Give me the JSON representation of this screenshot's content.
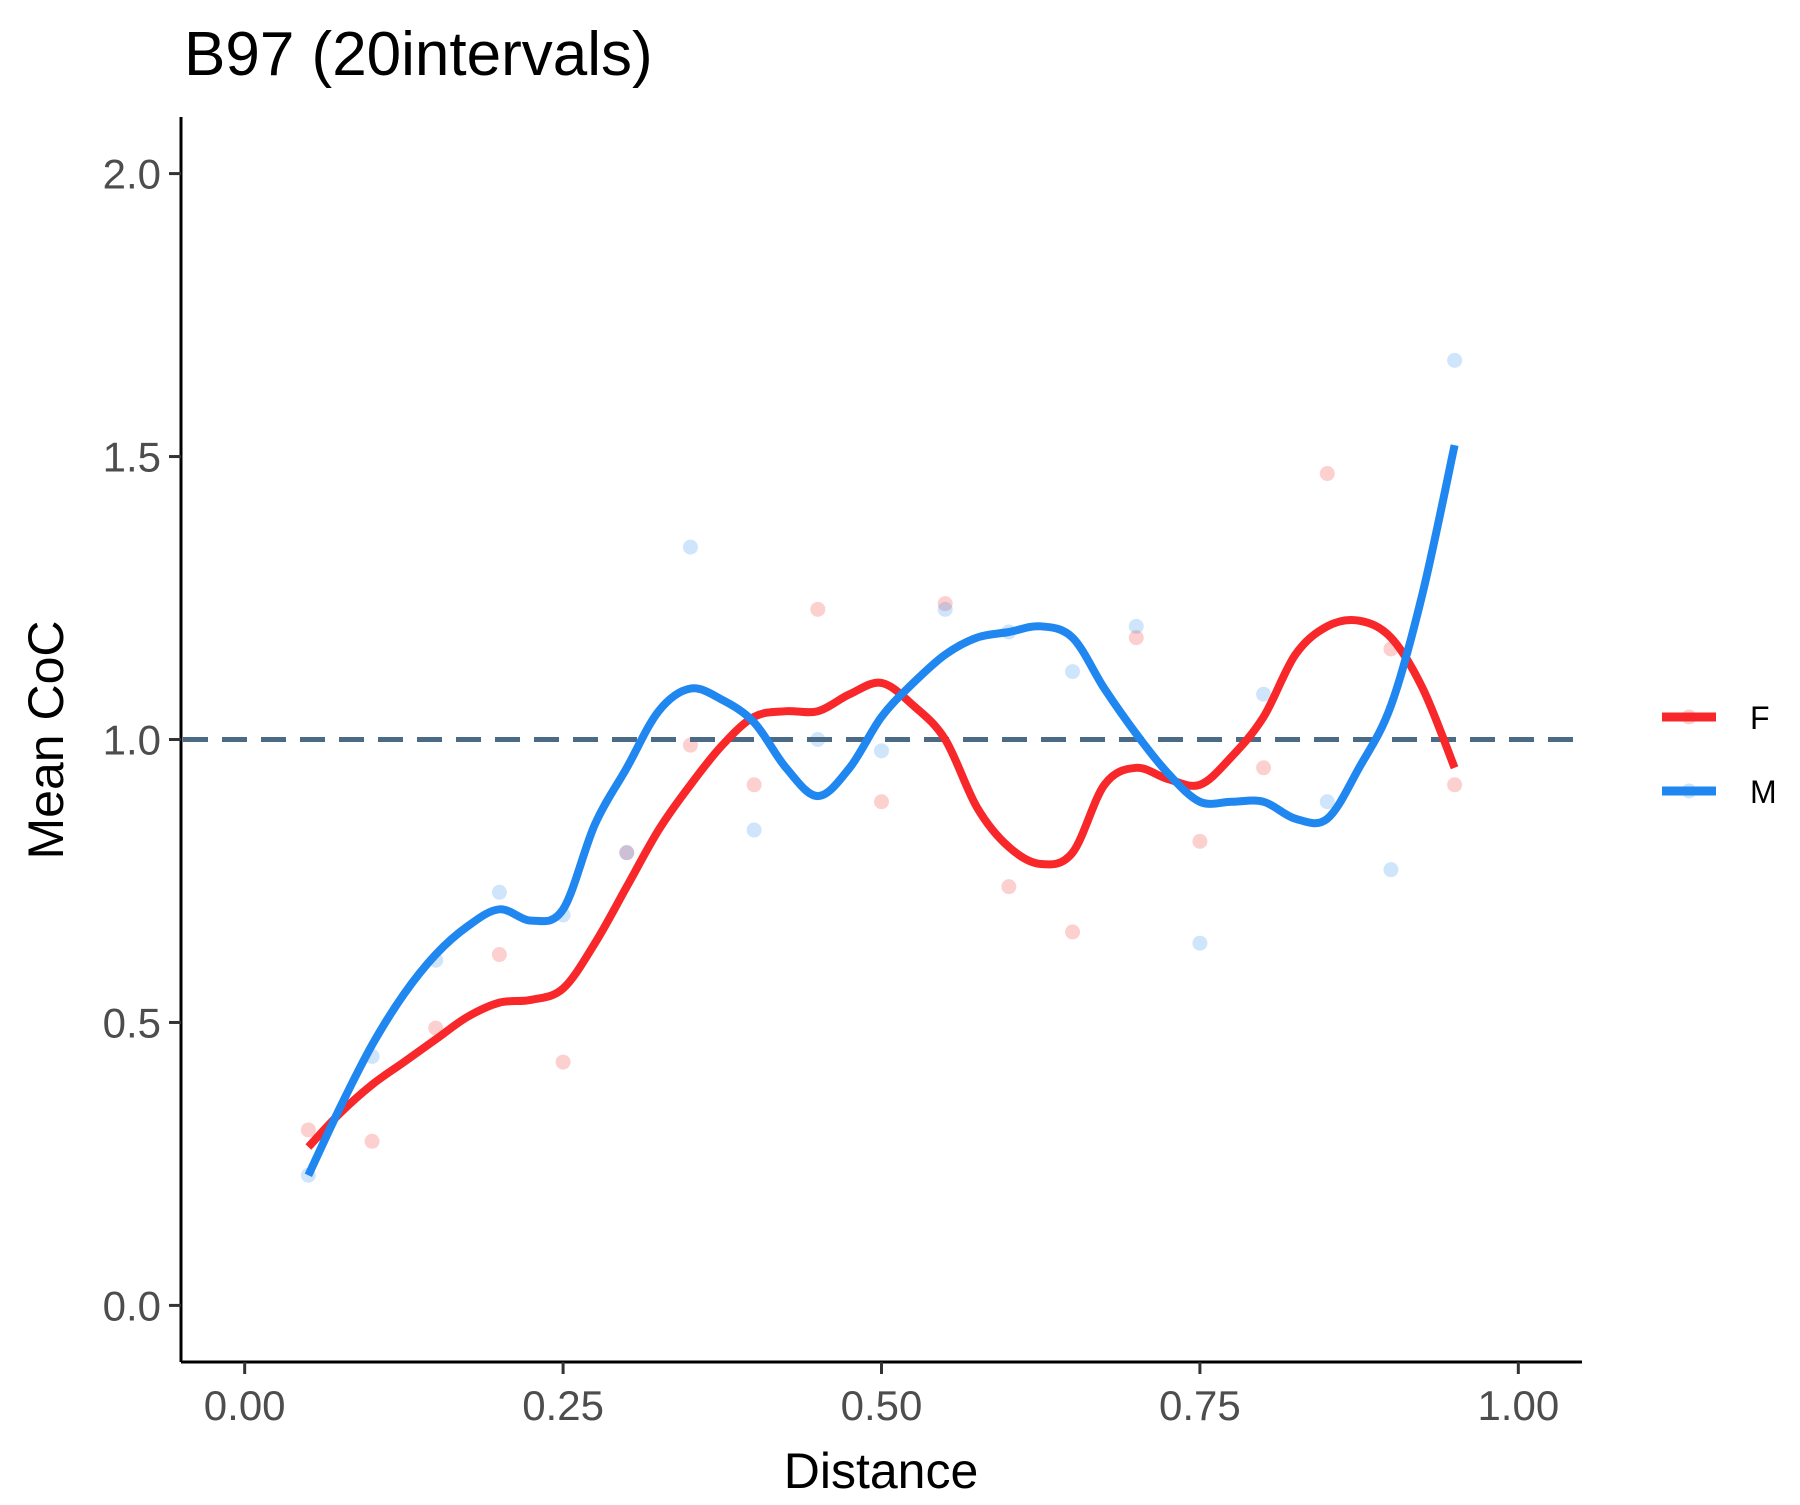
{
  "chart_data": {
    "type": "line",
    "title": "B97 (20intervals)",
    "xlabel": "Distance",
    "ylabel": "Mean CoC",
    "xlim": [
      -0.05,
      1.05
    ],
    "ylim": [
      -0.1,
      2.1
    ],
    "x_ticks": [
      0.0,
      0.25,
      0.5,
      0.75,
      1.0
    ],
    "x_tick_labels": [
      "0.00",
      "0.25",
      "0.50",
      "0.75",
      "1.00"
    ],
    "y_ticks": [
      0.0,
      0.5,
      1.0,
      1.5,
      2.0
    ],
    "y_tick_labels": [
      "0.0",
      "0.5",
      "1.0",
      "1.5",
      "2.0"
    ],
    "reference_line": {
      "y": 1.0,
      "style": "dashed",
      "color": "#4a6a86"
    },
    "grid": false,
    "legend_position": "right",
    "series": [
      {
        "name": "F",
        "color": "#f8272a",
        "points": {
          "x": [
            0.05,
            0.1,
            0.15,
            0.2,
            0.25,
            0.3,
            0.35,
            0.4,
            0.45,
            0.5,
            0.55,
            0.6,
            0.65,
            0.7,
            0.75,
            0.8,
            0.85,
            0.9,
            0.95
          ],
          "y": [
            0.31,
            0.29,
            0.49,
            0.62,
            0.43,
            0.8,
            0.99,
            0.92,
            1.23,
            0.89,
            1.24,
            0.74,
            0.66,
            1.18,
            0.82,
            0.95,
            1.47,
            1.16,
            0.92
          ]
        },
        "smooth": {
          "x": [
            0.05,
            0.075,
            0.1,
            0.125,
            0.15,
            0.175,
            0.2,
            0.225,
            0.25,
            0.275,
            0.3,
            0.325,
            0.35,
            0.375,
            0.4,
            0.425,
            0.45,
            0.475,
            0.5,
            0.525,
            0.55,
            0.575,
            0.6,
            0.625,
            0.65,
            0.675,
            0.7,
            0.725,
            0.75,
            0.775,
            0.8,
            0.825,
            0.85,
            0.875,
            0.9,
            0.925,
            0.95
          ],
          "y": [
            0.28,
            0.34,
            0.39,
            0.43,
            0.47,
            0.51,
            0.535,
            0.54,
            0.56,
            0.64,
            0.74,
            0.84,
            0.92,
            0.99,
            1.04,
            1.05,
            1.05,
            1.08,
            1.1,
            1.06,
            1.0,
            0.88,
            0.81,
            0.78,
            0.8,
            0.92,
            0.95,
            0.93,
            0.92,
            0.97,
            1.04,
            1.15,
            1.2,
            1.21,
            1.18,
            1.09,
            0.95
          ]
        }
      },
      {
        "name": "M",
        "color": "#1f87ef",
        "points": {
          "x": [
            0.05,
            0.1,
            0.15,
            0.2,
            0.25,
            0.3,
            0.35,
            0.4,
            0.45,
            0.5,
            0.55,
            0.6,
            0.65,
            0.7,
            0.75,
            0.8,
            0.85,
            0.9,
            0.95
          ],
          "y": [
            0.23,
            0.44,
            0.61,
            0.73,
            0.69,
            0.8,
            1.34,
            0.84,
            1.0,
            0.98,
            1.23,
            1.19,
            1.12,
            1.2,
            0.64,
            1.08,
            0.89,
            0.77,
            1.67
          ]
        },
        "smooth": {
          "x": [
            0.05,
            0.075,
            0.1,
            0.125,
            0.15,
            0.175,
            0.2,
            0.225,
            0.25,
            0.275,
            0.3,
            0.325,
            0.35,
            0.375,
            0.4,
            0.425,
            0.45,
            0.475,
            0.5,
            0.525,
            0.55,
            0.575,
            0.6,
            0.625,
            0.65,
            0.675,
            0.7,
            0.725,
            0.75,
            0.775,
            0.8,
            0.825,
            0.85,
            0.875,
            0.9,
            0.925,
            0.95
          ],
          "y": [
            0.23,
            0.35,
            0.46,
            0.55,
            0.62,
            0.67,
            0.7,
            0.68,
            0.7,
            0.85,
            0.95,
            1.05,
            1.09,
            1.07,
            1.03,
            0.95,
            0.9,
            0.95,
            1.04,
            1.1,
            1.15,
            1.18,
            1.19,
            1.2,
            1.18,
            1.09,
            1.01,
            0.94,
            0.89,
            0.89,
            0.89,
            0.86,
            0.86,
            0.95,
            1.06,
            1.26,
            1.52
          ]
        }
      }
    ]
  }
}
